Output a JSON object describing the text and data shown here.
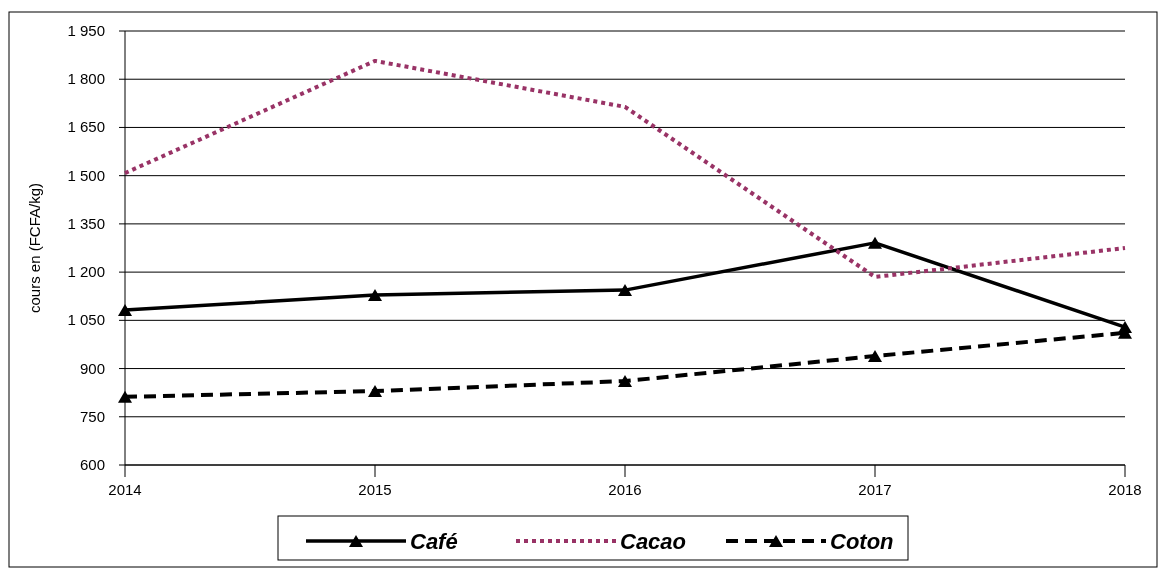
{
  "chart_data": {
    "type": "line",
    "ylabel": "cours en (FCFA/kg)",
    "x": [
      2014,
      2015,
      2016,
      2017,
      2018
    ],
    "xlim": [
      2014,
      2018
    ],
    "xticks": [
      2014,
      2015,
      2016,
      2017,
      2018
    ],
    "ylim": [
      600,
      1950
    ],
    "yticks": [
      600,
      750,
      900,
      {
        "value": 1050,
        "label": "1 050"
      },
      {
        "value": 1200,
        "label": "1 200"
      },
      {
        "value": 1350,
        "label": "1 350"
      },
      {
        "value": 1500,
        "label": "1 500"
      },
      {
        "value": 1650,
        "label": "1 650"
      },
      {
        "value": 1800,
        "label": "1 800"
      },
      {
        "value": 1950,
        "label": "1 950"
      }
    ],
    "grid": "y",
    "legend": "bottom",
    "series": [
      {
        "name": "Café",
        "color": "#000000",
        "values": [
          1082,
          1129,
          1144,
          1291,
          1029
        ],
        "line_style": "solid",
        "marker": "triangle"
      },
      {
        "name": "Cacao",
        "color": "#993366",
        "values": [
          1508,
          1857,
          1714,
          1185,
          1275
        ],
        "line_style": "dotted",
        "marker": "none"
      },
      {
        "name": "Coton",
        "color": "#000000",
        "values": [
          812,
          830,
          861,
          939,
          1011
        ],
        "line_style": "dashed",
        "marker": "triangle"
      }
    ]
  }
}
